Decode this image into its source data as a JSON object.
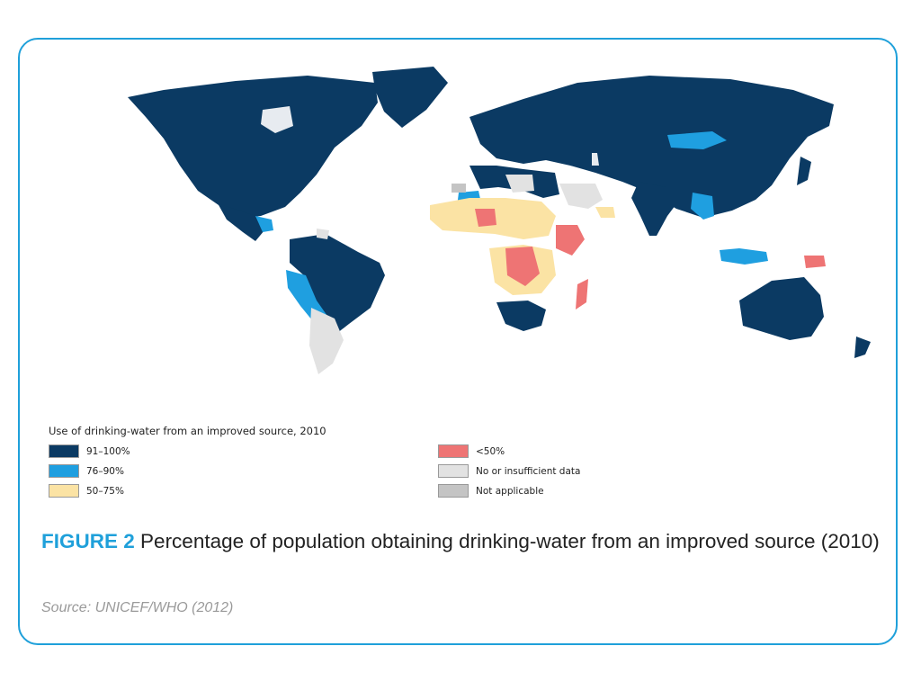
{
  "legend": {
    "title": "Use of drinking-water from an improved source, 2010",
    "items": [
      {
        "label": "91–100%",
        "color": "#0b3a63"
      },
      {
        "label": "76–90%",
        "color": "#1f9fe0"
      },
      {
        "label": "50–75%",
        "color": "#fbe3a4"
      },
      {
        "label": "<50%",
        "color": "#ee7474"
      },
      {
        "label": "No or insufficient data",
        "color": "#e2e2e2"
      },
      {
        "label": "Not applicable",
        "color": "#c4c4c4"
      }
    ]
  },
  "caption": {
    "figure_label": "FIGURE 2",
    "text": "Percentage of population obtaining drinking-water from an improved source (2010)"
  },
  "source": "Source: UNICEF/WHO (2012)"
}
